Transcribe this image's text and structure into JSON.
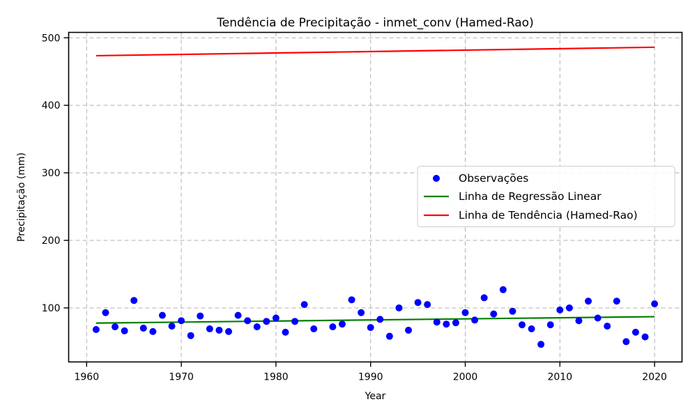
{
  "chart_data": {
    "type": "scatter",
    "title": "Tendência de Precipitação - inmet_conv (Hamed-Rao)",
    "xlabel": "Year",
    "ylabel": "Precipitação (mm)",
    "xlim": [
      1958.1,
      2022.9
    ],
    "ylim": [
      20,
      508
    ],
    "xticks": [
      1960,
      1970,
      1980,
      1990,
      2000,
      2010,
      2020
    ],
    "yticks": [
      100,
      200,
      300,
      400,
      500
    ],
    "grid": true,
    "grid_style": "dashed",
    "legend_position": "center-right",
    "observations": {
      "name": "Observações",
      "color": "#0000ff",
      "x": [
        1961,
        1962,
        1963,
        1964,
        1965,
        1966,
        1967,
        1968,
        1969,
        1970,
        1971,
        1972,
        1973,
        1974,
        1975,
        1976,
        1977,
        1978,
        1979,
        1980,
        1981,
        1982,
        1983,
        1984,
        1986,
        1987,
        1988,
        1989,
        1990,
        1991,
        1992,
        1993,
        1994,
        1995,
        1996,
        1997,
        1998,
        1999,
        2000,
        2001,
        2002,
        2003,
        2004,
        2005,
        2006,
        2007,
        2008,
        2009,
        2010,
        2011,
        2012,
        2013,
        2014,
        2015,
        2016,
        2017,
        2018,
        2019,
        2020
      ],
      "y": [
        68,
        93,
        72,
        66,
        111,
        70,
        65,
        89,
        73,
        81,
        59,
        88,
        69,
        67,
        65,
        89,
        81,
        72,
        80,
        85,
        64,
        80,
        105,
        69,
        72,
        76,
        112,
        93,
        71,
        83,
        58,
        100,
        67,
        108,
        105,
        79,
        76,
        78,
        93,
        82,
        115,
        91,
        127,
        95,
        75,
        69,
        46,
        75,
        97,
        100,
        81,
        110,
        85,
        73,
        110,
        50,
        64,
        57,
        106
      ]
    },
    "regression_line": {
      "name": "Linha de Regressão Linear",
      "color": "#008000",
      "x": [
        1961,
        2020
      ],
      "y": [
        77.5,
        87
      ]
    },
    "trend_line": {
      "name": "Linha de Tendência (Hamed-Rao)",
      "color": "#ff0000",
      "x": [
        1961,
        2020
      ],
      "y": [
        473.5,
        486
      ]
    }
  }
}
